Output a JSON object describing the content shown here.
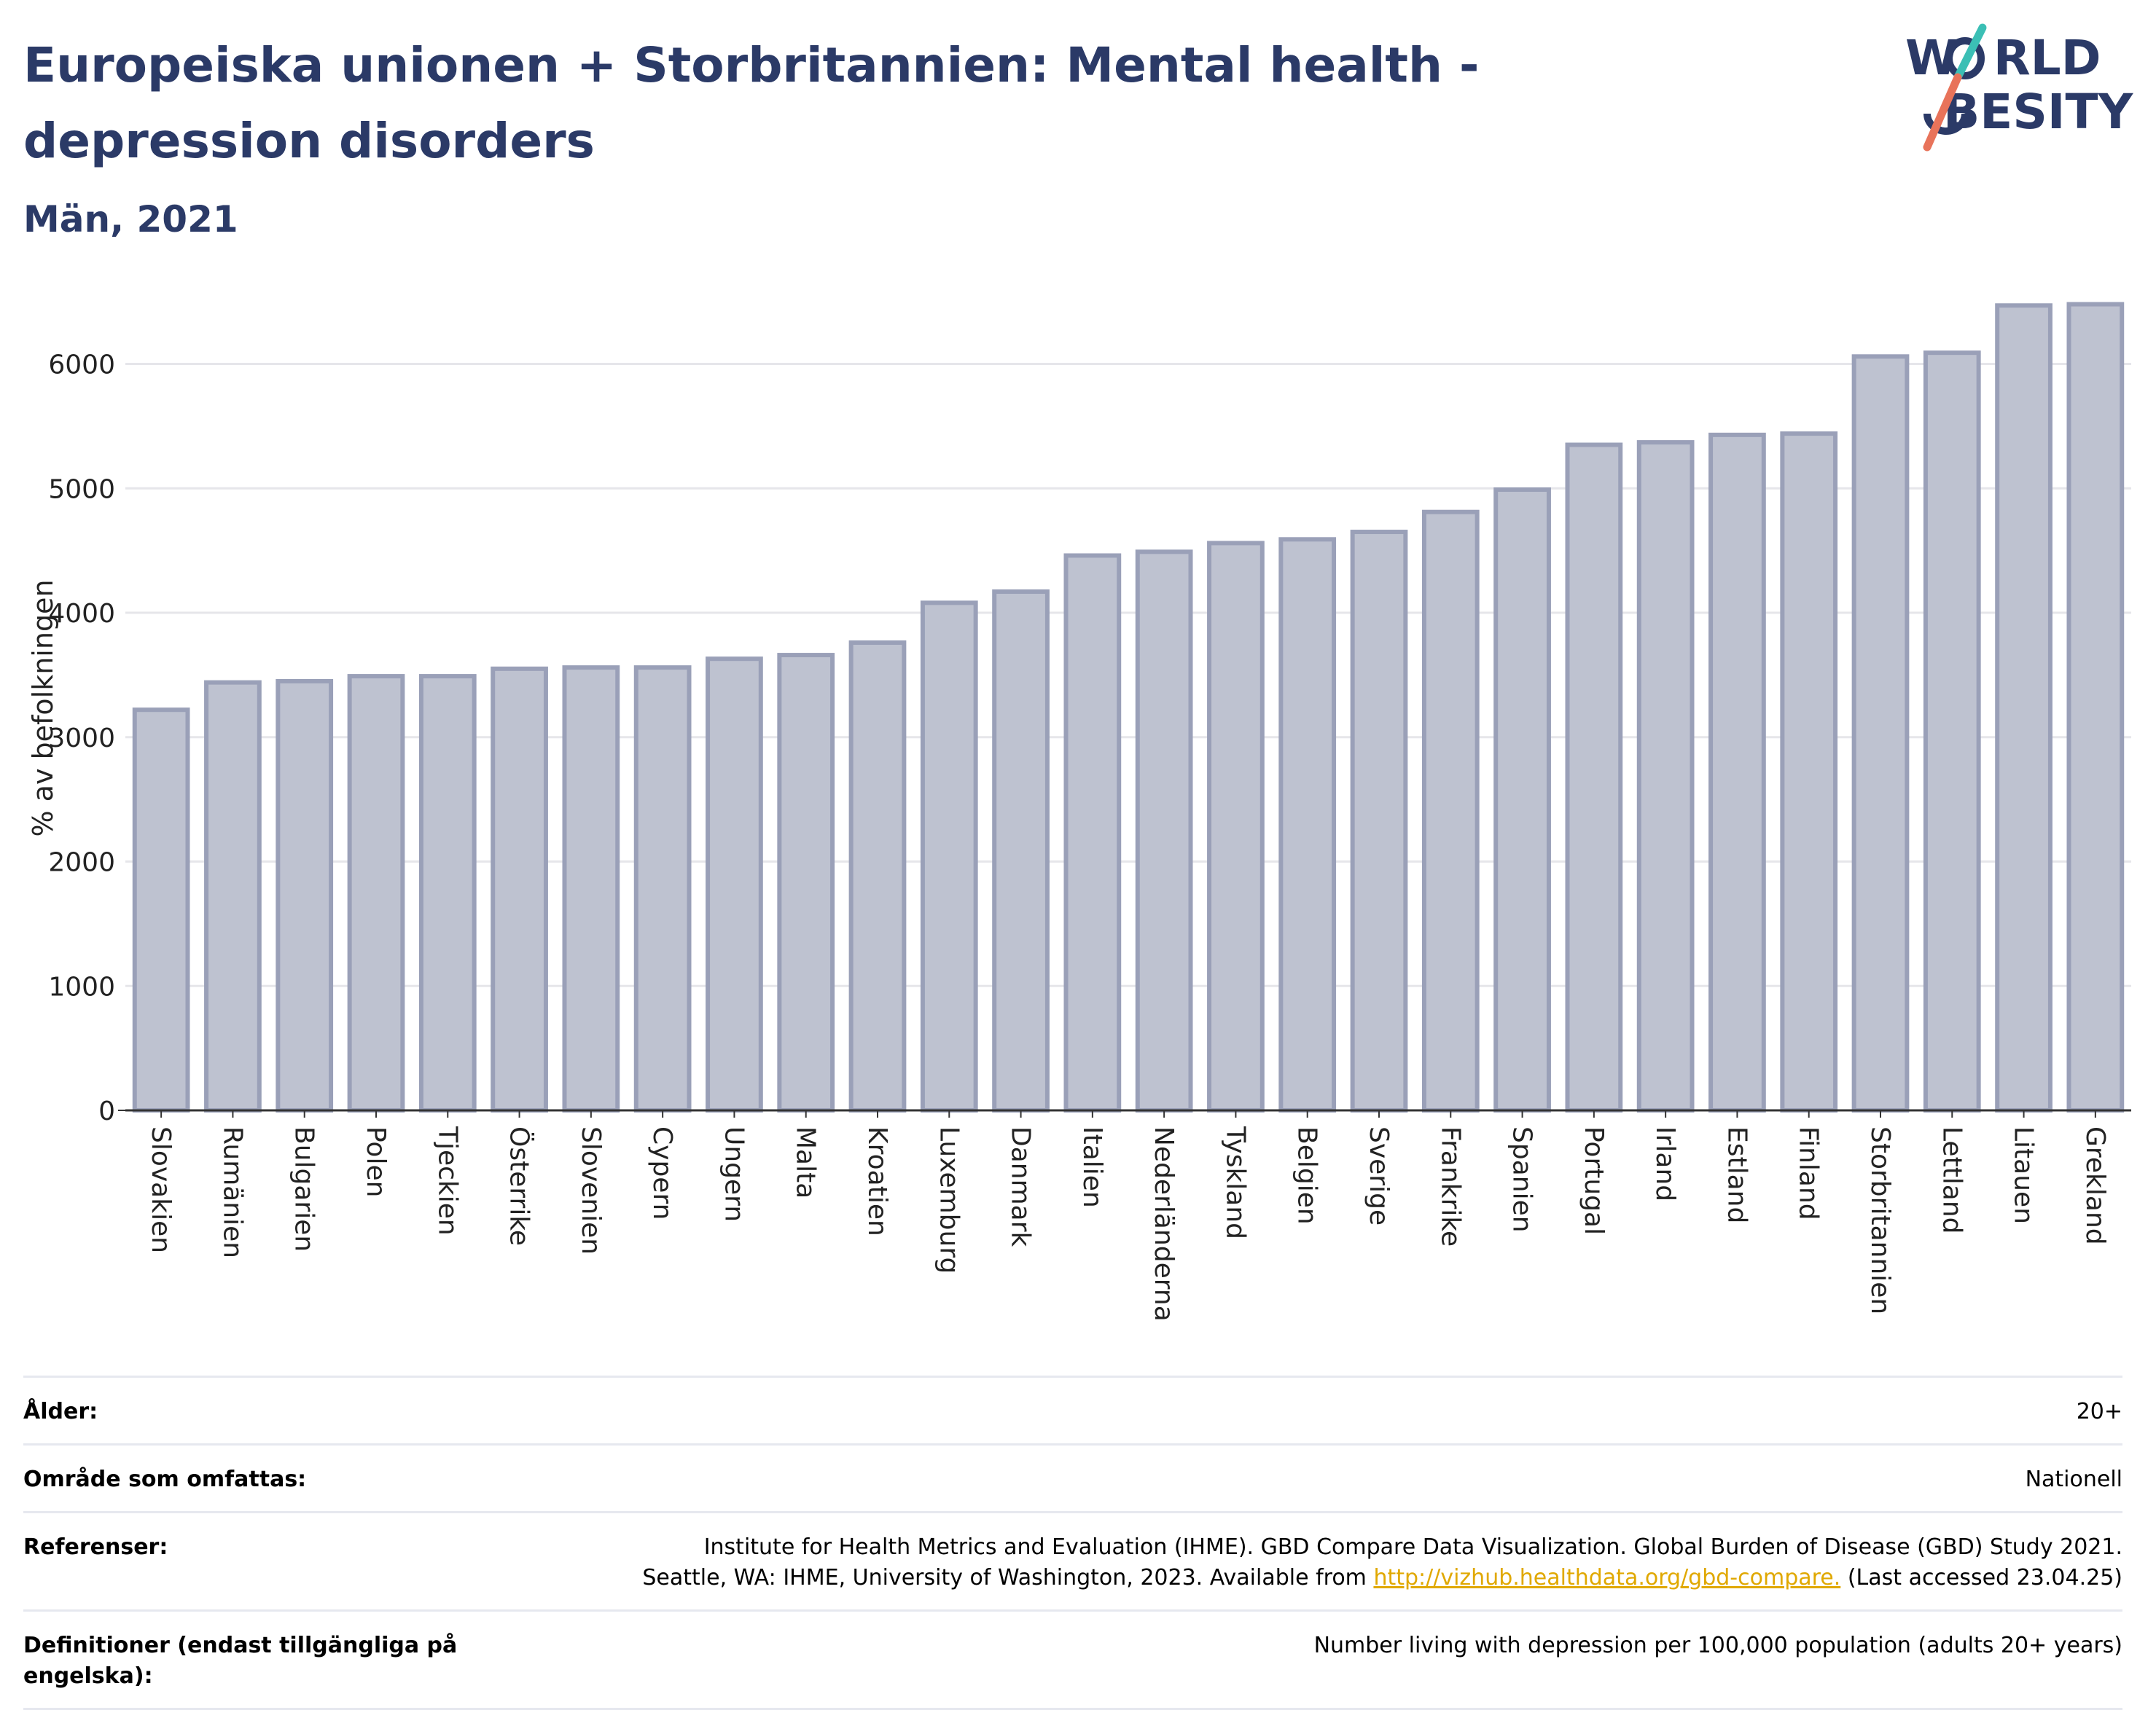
{
  "header": {
    "title": "Europeiska unionen + Storbritannien: Mental health - depression disorders",
    "subtitle": "Män, 2021"
  },
  "logo": {
    "line1": "W",
    "line1b": "RLD",
    "line2": "BESITY",
    "accent1": "#3bbfb5",
    "accent2": "#e8735a",
    "color": "#2b3a67"
  },
  "chart_data": {
    "type": "bar",
    "ylabel": "% av befolkningen",
    "ylim": [
      0,
      6700
    ],
    "yticks": [
      0,
      1000,
      2000,
      3000,
      4000,
      5000,
      6000
    ],
    "grid": true,
    "categories": [
      "Slovakien",
      "Rumänien",
      "Bulgarien",
      "Polen",
      "Tjeckien",
      "Österrike",
      "Slovenien",
      "Cypern",
      "Ungern",
      "Malta",
      "Kroatien",
      "Luxemburg",
      "Danmark",
      "Italien",
      "Nederländerna",
      "Tyskland",
      "Belgien",
      "Sverige",
      "Frankrike",
      "Spanien",
      "Portugal",
      "Irland",
      "Estland",
      "Finland",
      "Storbritannien",
      "Lettland",
      "Litauen",
      "Grekland"
    ],
    "values": [
      3220,
      3440,
      3450,
      3490,
      3490,
      3550,
      3560,
      3560,
      3630,
      3660,
      3760,
      4080,
      4170,
      4460,
      4490,
      4560,
      4590,
      4650,
      4810,
      4990,
      5350,
      5370,
      5430,
      5440,
      6060,
      6090,
      6470,
      6480
    ],
    "bar_fill": "#bec2d0",
    "bar_stroke": "#9aa0b8"
  },
  "info": {
    "rows": [
      {
        "label": "Ålder:",
        "value": "20+"
      },
      {
        "label": "Område som omfattas:",
        "value": "Nationell"
      },
      {
        "label": "Referenser:",
        "value_line1": "Institute for Health Metrics and Evaluation (IHME). GBD Compare Data Visualization. Global Burden of Disease (GBD) Study 2021.",
        "value_line2a": "Seattle, WA: IHME, University of Washington, 2023. Available from ",
        "link": "http://vizhub.healthdata.org/gbd-compare.",
        "value_line2b": " (Last accessed 23.04.25)"
      },
      {
        "label": "Definitioner (endast tillgängliga på engelska):",
        "value": "Number living with depression per 100,000 population (adults 20+ years)"
      }
    ]
  }
}
